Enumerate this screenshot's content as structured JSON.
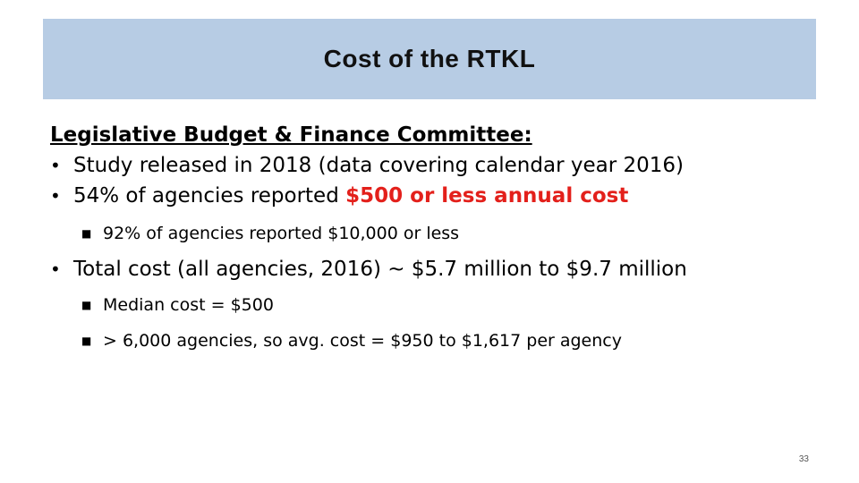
{
  "slide": {
    "title": "Cost of the RTKL",
    "heading": "Legislative Budget & Finance Committee:",
    "bullets": [
      {
        "text": "Study released in 2018 (data covering calendar year 2016)"
      },
      {
        "text_prefix": "54% of agencies reported ",
        "text_highlight": "$500 or less annual cost"
      },
      {
        "text": "92% of agencies reported $10,000 or less"
      },
      {
        "text": "Total cost (all agencies, 2016) ~ $5.7 million to $9.7 million"
      },
      {
        "text": "Median cost = $500"
      },
      {
        "text": "> 6,000 agencies, so avg. cost = $950 to $1,617 per agency"
      }
    ],
    "page_number": "33",
    "colors": {
      "title_band": "#b7cce4",
      "highlight": "#e3201b"
    },
    "icons": {
      "level1_bullet": "round-bullet-icon",
      "level2_bullet": "square-bullet-icon"
    }
  }
}
